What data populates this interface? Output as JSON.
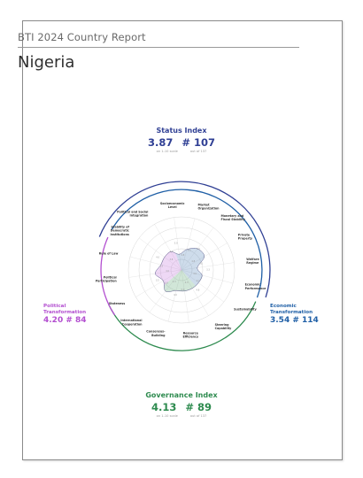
{
  "report_title": "BTI 2024 Country Report",
  "country": "Nigeria",
  "colors": {
    "status": "#2f3f94",
    "economic": "#1f5fa6",
    "governance": "#2e8b4f",
    "political": "#b34fd0"
  },
  "status_index": {
    "title": "Status Index",
    "score": "3.87",
    "rank": "# 107",
    "scale": "on 1-10 scale",
    "out_of": "out of 137"
  },
  "governance_index": {
    "title": "Governance Index",
    "score": "4.13",
    "rank": "# 89",
    "scale": "on 1-10 scale",
    "out_of": "out of 137"
  },
  "political": {
    "title_line1": "Political",
    "title_line2": "Transformation",
    "value": "4.20  # 84"
  },
  "economic": {
    "title_line1": "Economic",
    "title_line2": "Transformation",
    "value": "3.54  # 114"
  },
  "criteria": [
    {
      "lines": [
        "Socioeconomic",
        "Level"
      ],
      "group": "economic",
      "score": 3
    },
    {
      "lines": [
        "Market",
        "Organization"
      ],
      "group": "economic",
      "score": 4
    },
    {
      "lines": [
        "Monetary and",
        "Fiscal Stability"
      ],
      "group": "economic",
      "score": 5
    },
    {
      "lines": [
        "Private",
        "Property"
      ],
      "group": "economic",
      "score": 5
    },
    {
      "lines": [
        "Welfare",
        "Regime"
      ],
      "group": "economic",
      "score": 3
    },
    {
      "lines": [
        "Economic",
        "Performance"
      ],
      "group": "economic",
      "score": 4
    },
    {
      "lines": [
        "Sustainability"
      ],
      "group": "economic",
      "score": 4
    },
    {
      "lines": [
        "Steering",
        "Capability"
      ],
      "group": "governance",
      "score": 4
    },
    {
      "lines": [
        "Resource",
        "Efficiency"
      ],
      "group": "governance",
      "score": 4
    },
    {
      "lines": [
        "Consensus-",
        "Building"
      ],
      "group": "governance",
      "score": 4
    },
    {
      "lines": [
        "International",
        "Cooperation"
      ],
      "group": "governance",
      "score": 5
    },
    {
      "lines": [
        "Stateness"
      ],
      "group": "political",
      "score": 4
    },
    {
      "lines": [
        "Political",
        "Participation"
      ],
      "group": "political",
      "score": 5
    },
    {
      "lines": [
        "Rule of Law"
      ],
      "group": "political",
      "score": 4
    },
    {
      "lines": [
        "Stability of",
        "Democratic",
        "Institutions"
      ],
      "group": "political",
      "score": 4
    },
    {
      "lines": [
        "Political and Social",
        "Integration"
      ],
      "group": "political",
      "score": 4
    }
  ],
  "tick_labels": [
    "2.8",
    "3.5",
    "5.0",
    "4.8",
    "4.5",
    "3.3",
    "4.0",
    "4.1",
    "4.8",
    "4.3",
    "5.0",
    "4.0",
    "4.3",
    "3.8",
    "3.5",
    "4.0",
    "4.5",
    "4.0",
    "3.8",
    "4.0",
    "5.0"
  ]
}
